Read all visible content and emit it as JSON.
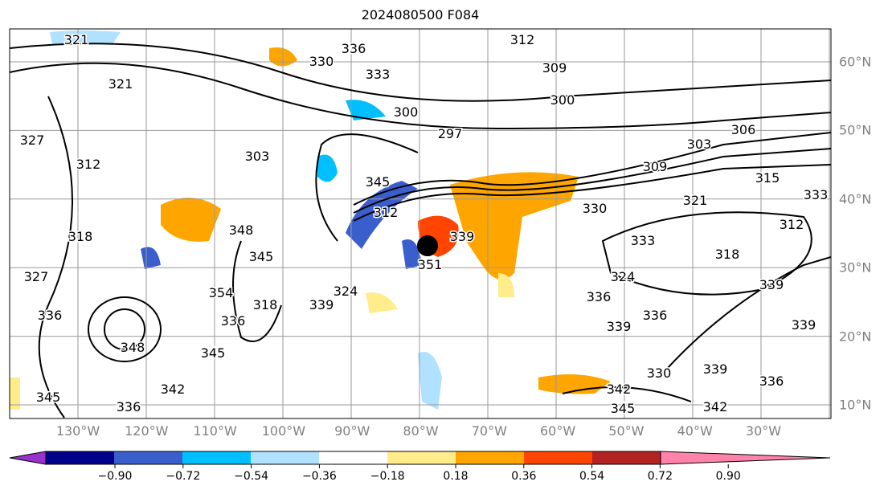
{
  "title": "2024080500 F084",
  "lon_labels": [
    "130°W",
    "120°W",
    "110°W",
    "100°W",
    "90°W",
    "80°W",
    "70°W",
    "60°W",
    "50°W",
    "40°W",
    "30°W"
  ],
  "lat_labels": [
    "60°N",
    "50°N",
    "40°N",
    "30°N",
    "20°N",
    "10°N"
  ],
  "colorbar": {
    "ticks": [
      "−0.90",
      "−0.72",
      "−0.54",
      "−0.36",
      "−0.18",
      "0.18",
      "0.36",
      "0.54",
      "0.72",
      "0.90"
    ],
    "colors": [
      "#9932cc",
      "#00008b",
      "#3a5fcd",
      "#00bfff",
      "#b0e2ff",
      "#ffffff",
      "#ffec8b",
      "#ffa500",
      "#ff4500",
      "#b22222",
      "#ff82ab"
    ]
  },
  "contour_labels": [
    "321",
    "321",
    "327",
    "312",
    "318",
    "327",
    "336",
    "348",
    "345",
    "342",
    "336",
    "336",
    "333",
    "330",
    "312",
    "309",
    "300",
    "300",
    "297",
    "303",
    "303",
    "306",
    "309",
    "321",
    "315",
    "312",
    "333",
    "330",
    "333",
    "324",
    "318",
    "336",
    "336",
    "339",
    "330",
    "339",
    "342",
    "345",
    "339",
    "339",
    "336",
    "342",
    "345",
    "345",
    "324",
    "318",
    "339",
    "351",
    "354",
    "336",
    "339",
    "348",
    "345",
    "312"
  ]
}
